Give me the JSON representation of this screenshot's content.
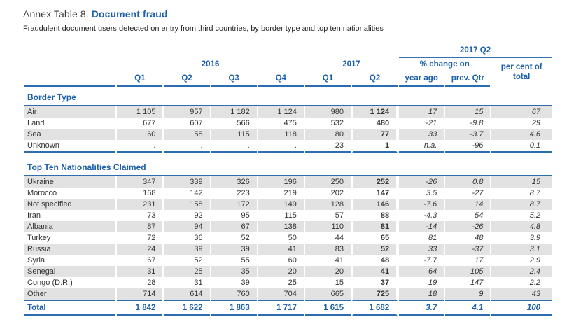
{
  "title": {
    "prefix": "Annex Table 8. ",
    "highlight": "Document fraud"
  },
  "subtitle": "Fraudulent document users detected on entry from third countries, by border type and top ten nationalities",
  "header": {
    "top_group": "2017 Q2",
    "group_2016": "2016",
    "group_2017": "2017",
    "pct_change_label": "% change on",
    "per_cent_label": "per cent of total",
    "quarters_2016": [
      "Q1",
      "Q2",
      "Q3",
      "Q4"
    ],
    "quarters_2017": [
      "Q1",
      "Q2"
    ],
    "change_cols": [
      "year ago",
      "prev. Qtr"
    ]
  },
  "sections": [
    {
      "name": "Border Type",
      "rows": [
        {
          "label": "Air",
          "values": [
            "1 105",
            "957",
            "1 182",
            "1 124",
            "980",
            "1 124",
            "17",
            "15",
            "67"
          ]
        },
        {
          "label": "Land",
          "values": [
            "677",
            "607",
            "566",
            "475",
            "532",
            "480",
            "-21",
            "-9.8",
            "29"
          ]
        },
        {
          "label": "Sea",
          "values": [
            "60",
            "58",
            "115",
            "118",
            "80",
            "77",
            "33",
            "-3.7",
            "4.6"
          ]
        },
        {
          "label": "Unknown",
          "values": [
            ".",
            ".",
            ".",
            ".",
            "23",
            "1",
            "n.a.",
            "-96",
            "0.1"
          ]
        }
      ]
    },
    {
      "name": "Top Ten Nationalities Claimed",
      "rows": [
        {
          "label": "Ukraine",
          "values": [
            "347",
            "339",
            "326",
            "196",
            "250",
            "252",
            "-26",
            "0.8",
            "15"
          ]
        },
        {
          "label": "Morocco",
          "values": [
            "168",
            "142",
            "223",
            "219",
            "202",
            "147",
            "3.5",
            "-27",
            "8.7"
          ]
        },
        {
          "label": "Not specified",
          "values": [
            "231",
            "158",
            "172",
            "149",
            "128",
            "146",
            "-7.6",
            "14",
            "8.7"
          ]
        },
        {
          "label": "Iran",
          "values": [
            "73",
            "92",
            "95",
            "115",
            "57",
            "88",
            "-4.3",
            "54",
            "5.2"
          ]
        },
        {
          "label": "Albania",
          "values": [
            "87",
            "94",
            "67",
            "138",
            "110",
            "81",
            "-14",
            "-26",
            "4.8"
          ]
        },
        {
          "label": "Turkey",
          "values": [
            "72",
            "36",
            "52",
            "50",
            "44",
            "65",
            "81",
            "48",
            "3.9"
          ]
        },
        {
          "label": "Russia",
          "values": [
            "24",
            "39",
            "39",
            "41",
            "83",
            "52",
            "33",
            "-37",
            "3.1"
          ]
        },
        {
          "label": "Syria",
          "values": [
            "67",
            "52",
            "55",
            "60",
            "41",
            "48",
            "-7.7",
            "17",
            "2.9"
          ]
        },
        {
          "label": "Senegal",
          "values": [
            "31",
            "25",
            "35",
            "20",
            "20",
            "41",
            "64",
            "105",
            "2.4"
          ]
        },
        {
          "label": "Congo (D.R.)",
          "values": [
            "28",
            "31",
            "39",
            "25",
            "15",
            "37",
            "19",
            "147",
            "2.2"
          ]
        },
        {
          "label": "Other",
          "values": [
            "714",
            "614",
            "760",
            "704",
            "665",
            "725",
            "18",
            "9",
            "43"
          ]
        }
      ]
    }
  ],
  "total": {
    "label": "Total",
    "values": [
      "1 842",
      "1 622",
      "1 863",
      "1 717",
      "1 615",
      "1 682",
      "3.7",
      "4.1",
      "100"
    ]
  },
  "colors": {
    "accent_blue": "#1a5fa9",
    "line_blue": "#2c6cb0",
    "row_shade": "#e2e2e2",
    "body_text": "#333333"
  }
}
